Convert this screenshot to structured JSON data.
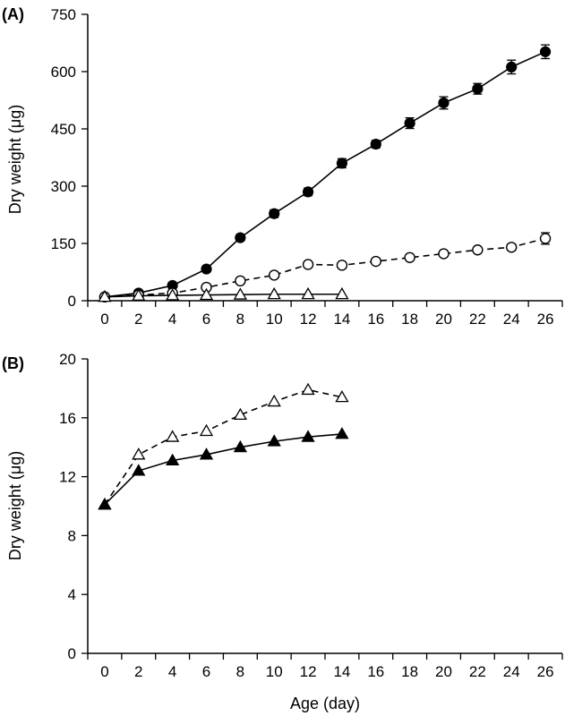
{
  "chart_data": [
    {
      "type": "line",
      "panel_label": "(A)",
      "xlabel": "",
      "ylabel": "Dry weight (μg)",
      "xlim": [
        -1,
        27
      ],
      "ylim": [
        0,
        750
      ],
      "xticks": [
        0,
        2,
        4,
        6,
        8,
        10,
        12,
        14,
        16,
        18,
        20,
        22,
        24,
        26
      ],
      "yticks": [
        0,
        150,
        300,
        450,
        600,
        750
      ],
      "grid": false,
      "series": [
        {
          "marker": "filled-circle",
          "line": "solid",
          "x": [
            0,
            2,
            4,
            6,
            8,
            10,
            12,
            14,
            16,
            18,
            20,
            22,
            24,
            26
          ],
          "y": [
            10,
            20,
            40,
            83,
            165,
            228,
            285,
            360,
            410,
            465,
            518,
            555,
            612,
            652
          ],
          "error": [
            3,
            3,
            5,
            6,
            8,
            10,
            10,
            12,
            10,
            14,
            16,
            14,
            18,
            18
          ]
        },
        {
          "marker": "open-circle",
          "line": "dashed",
          "x": [
            0,
            2,
            4,
            6,
            8,
            10,
            12,
            14,
            16,
            18,
            20,
            22,
            24,
            26
          ],
          "y": [
            10,
            15,
            20,
            35,
            52,
            67,
            95,
            93,
            103,
            113,
            123,
            133,
            140,
            163
          ],
          "error": [
            2,
            2,
            3,
            3,
            4,
            4,
            6,
            5,
            5,
            6,
            6,
            6,
            8,
            15
          ]
        },
        {
          "marker": "open-triangle",
          "line": "solid",
          "x": [
            0,
            2,
            4,
            6,
            8,
            10,
            12,
            14
          ],
          "y": [
            10,
            13,
            14,
            15,
            16,
            17,
            17,
            17
          ],
          "error": []
        }
      ]
    },
    {
      "type": "line",
      "panel_label": "(B)",
      "xlabel": "Age (day)",
      "ylabel": "Dry weight (μg)",
      "xlim": [
        -1,
        27
      ],
      "ylim": [
        0,
        20
      ],
      "xticks": [
        0,
        2,
        4,
        6,
        8,
        10,
        12,
        14,
        16,
        18,
        20,
        22,
        24,
        26
      ],
      "yticks": [
        0,
        4,
        8,
        12,
        16,
        20
      ],
      "grid": false,
      "series": [
        {
          "marker": "open-triangle",
          "line": "dashed",
          "x": [
            0,
            2,
            4,
            6,
            8,
            10,
            12,
            14
          ],
          "y": [
            10.1,
            13.5,
            14.7,
            15.1,
            16.2,
            17.1,
            17.9,
            17.4
          ]
        },
        {
          "marker": "filled-triangle",
          "line": "solid",
          "x": [
            0,
            2,
            4,
            6,
            8,
            10,
            12,
            14
          ],
          "y": [
            10.1,
            12.4,
            13.1,
            13.5,
            14.0,
            14.4,
            14.7,
            14.9
          ]
        }
      ]
    }
  ]
}
